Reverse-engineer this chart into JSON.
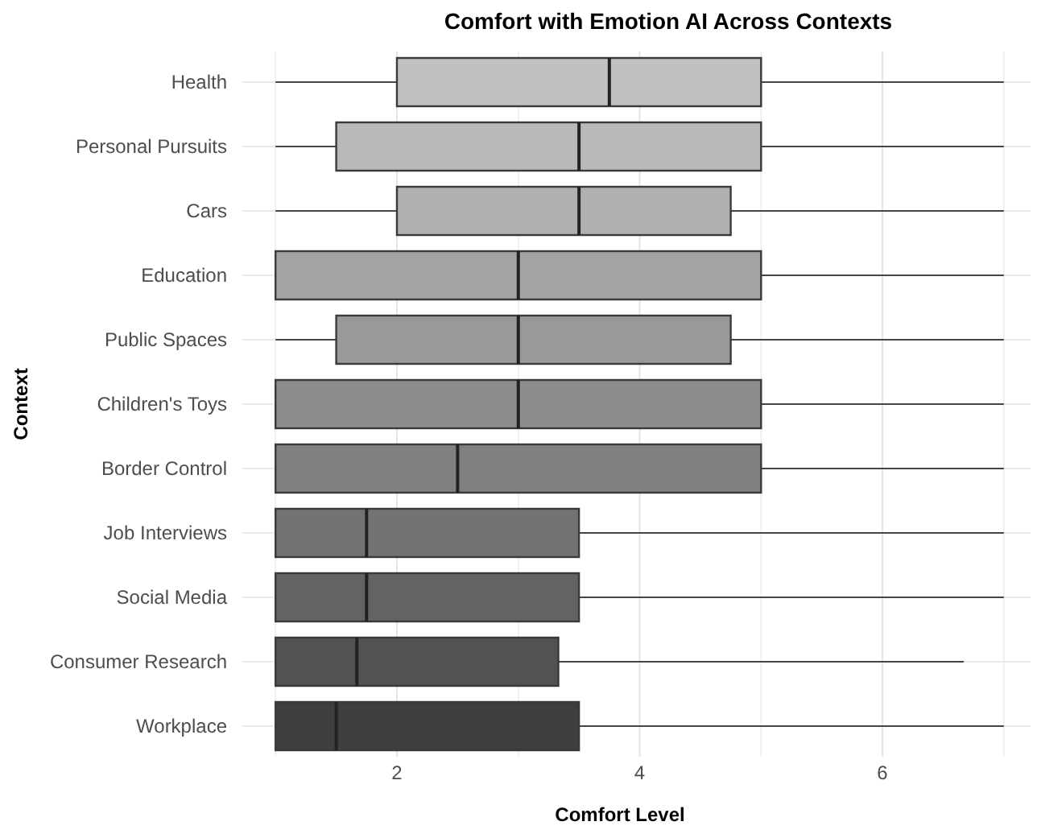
{
  "chart_data": {
    "type": "box",
    "orientation": "horizontal",
    "title": "Comfort with Emotion AI Across Contexts",
    "xlabel": "Comfort Level",
    "ylabel": "Context",
    "categories": [
      "Health",
      "Personal Pursuits",
      "Cars",
      "Education",
      "Public Spaces",
      "Children's Toys",
      "Border Control",
      "Job Interviews",
      "Social Media",
      "Consumer Research",
      "Workplace"
    ],
    "boxes": [
      {
        "low": 1,
        "q1": 2,
        "median": 3.75,
        "q3": 5,
        "high": 7
      },
      {
        "low": 1,
        "q1": 1.5,
        "median": 3.5,
        "q3": 5,
        "high": 7
      },
      {
        "low": 1,
        "q1": 2,
        "median": 3.5,
        "q3": 4.75,
        "high": 7
      },
      {
        "low": 1,
        "q1": 1,
        "median": 3,
        "q3": 5,
        "high": 7
      },
      {
        "low": 1,
        "q1": 1.5,
        "median": 3,
        "q3": 4.75,
        "high": 7
      },
      {
        "low": 1,
        "q1": 1,
        "median": 3,
        "q3": 5,
        "high": 7
      },
      {
        "low": 1,
        "q1": 1,
        "median": 2.5,
        "q3": 5,
        "high": 7
      },
      {
        "low": 1,
        "q1": 1,
        "median": 1.75,
        "q3": 3.5,
        "high": 7
      },
      {
        "low": 1,
        "q1": 1,
        "median": 1.75,
        "q3": 3.5,
        "high": 7
      },
      {
        "low": 1,
        "q1": 1,
        "median": 1.67,
        "q3": 3.33,
        "high": 6.67
      },
      {
        "low": 1,
        "q1": 1,
        "median": 1.5,
        "q3": 3.5,
        "high": 7
      }
    ],
    "colors": [
      "#c1c1c1",
      "#b9b9b9",
      "#b0b0b0",
      "#a4a4a4",
      "#999999",
      "#8d8d8d",
      "#808080",
      "#727272",
      "#636363",
      "#525252",
      "#3e3e3e"
    ],
    "xlim": [
      0.72,
      7.22
    ],
    "xticks": [
      {
        "value": 1,
        "label": null
      },
      2,
      {
        "value": 3,
        "label": null
      },
      4,
      {
        "value": 5,
        "label": null
      },
      6,
      {
        "value": 7,
        "label": null
      }
    ],
    "grid": true
  }
}
